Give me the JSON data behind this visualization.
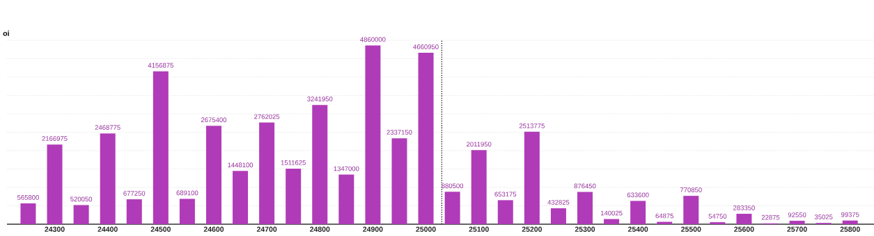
{
  "chart_data": {
    "type": "bar",
    "ylabel": "oi",
    "x": [
      24250,
      24300,
      24350,
      24400,
      24450,
      24500,
      24550,
      24600,
      24650,
      24700,
      24750,
      24800,
      24850,
      24900,
      24950,
      25000,
      25050,
      25100,
      25150,
      25200,
      25250,
      25300,
      25350,
      25400,
      25450,
      25500,
      25550,
      25600,
      25650,
      25700,
      25750,
      25800
    ],
    "values": [
      565800,
      2166975,
      520050,
      2468775,
      677250,
      4156875,
      689100,
      2675400,
      1448100,
      2762025,
      1511625,
      3241950,
      1347000,
      4860000,
      2337150,
      4660950,
      880500,
      2011950,
      653175,
      2513775,
      432825,
      876450,
      140025,
      633600,
      64875,
      770850,
      54750,
      283350,
      22875,
      92550,
      35025,
      99375
    ],
    "color": "#b03bb8",
    "data_labels": true,
    "xlim": [
      24210,
      25845
    ],
    "xticks": [
      24300,
      24400,
      24500,
      24600,
      24700,
      24800,
      24900,
      25000,
      25100,
      25200,
      25300,
      25400,
      25500,
      25600,
      25700,
      25800
    ],
    "ylim": [
      0,
      5000000
    ],
    "tick_labels": "x",
    "grid": "y",
    "ref_lines": [
      {
        "axis": "x",
        "value": 25030,
        "line_style": "dotted",
        "color": "#000000"
      }
    ]
  }
}
